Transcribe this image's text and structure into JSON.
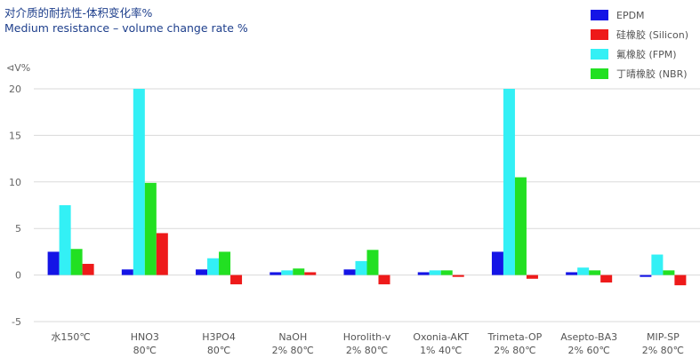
{
  "title_zh": "对介质的耐抗性-体积变化率%",
  "title_en": "Medium resistance – volume change rate %",
  "chart_data": {
    "type": "bar",
    "ylabel": "⊲V%",
    "ylim": [
      -5,
      20
    ],
    "yticks": [
      20,
      15,
      10,
      5,
      0,
      -5
    ],
    "categories": [
      [
        "水150℃"
      ],
      [
        "HNO3",
        "80℃"
      ],
      [
        "H3PO4",
        "80℃"
      ],
      [
        "NaOH",
        "2% 80℃"
      ],
      [
        "Horolith-v",
        "2% 80℃"
      ],
      [
        "Oxonia-AKT",
        "1% 40℃"
      ],
      [
        "Trimeta-OP",
        "2% 80℃"
      ],
      [
        "Asepto-BA3",
        "2% 60℃"
      ],
      [
        "MIP-SP",
        "2% 80℃"
      ]
    ],
    "series": [
      {
        "name": "EPDM",
        "color": "#1414e6",
        "values": [
          2.5,
          0.6,
          0.6,
          0.3,
          0.6,
          0.3,
          2.5,
          0.3,
          -0.2
        ]
      },
      {
        "name": "氟橡胶 (FPM)",
        "color": "#33f0f5",
        "values": [
          7.5,
          20,
          1.8,
          0.5,
          1.5,
          0.5,
          20,
          0.8,
          2.2
        ]
      },
      {
        "name": "丁晴橡胶 (NBR)",
        "color": "#22e022",
        "values": [
          2.8,
          9.9,
          2.5,
          0.7,
          2.7,
          0.5,
          10.5,
          0.5,
          0.5
        ]
      },
      {
        "name": "硅橡胶 (Silicon)",
        "color": "#ee1a1a",
        "values": [
          1.2,
          4.5,
          -1.0,
          0.3,
          -1.0,
          -0.2,
          -0.4,
          -0.8,
          -1.1
        ]
      }
    ],
    "legend": [
      {
        "name": "EPDM",
        "color": "#1414e6"
      },
      {
        "name": "硅橡胶 (Silicon)",
        "color": "#ee1a1a"
      },
      {
        "name": "氟橡胶 (FPM)",
        "color": "#33f0f5"
      },
      {
        "name": "丁晴橡胶 (NBR)",
        "color": "#22e022"
      }
    ],
    "legend_position": "top-right",
    "grid": true
  }
}
